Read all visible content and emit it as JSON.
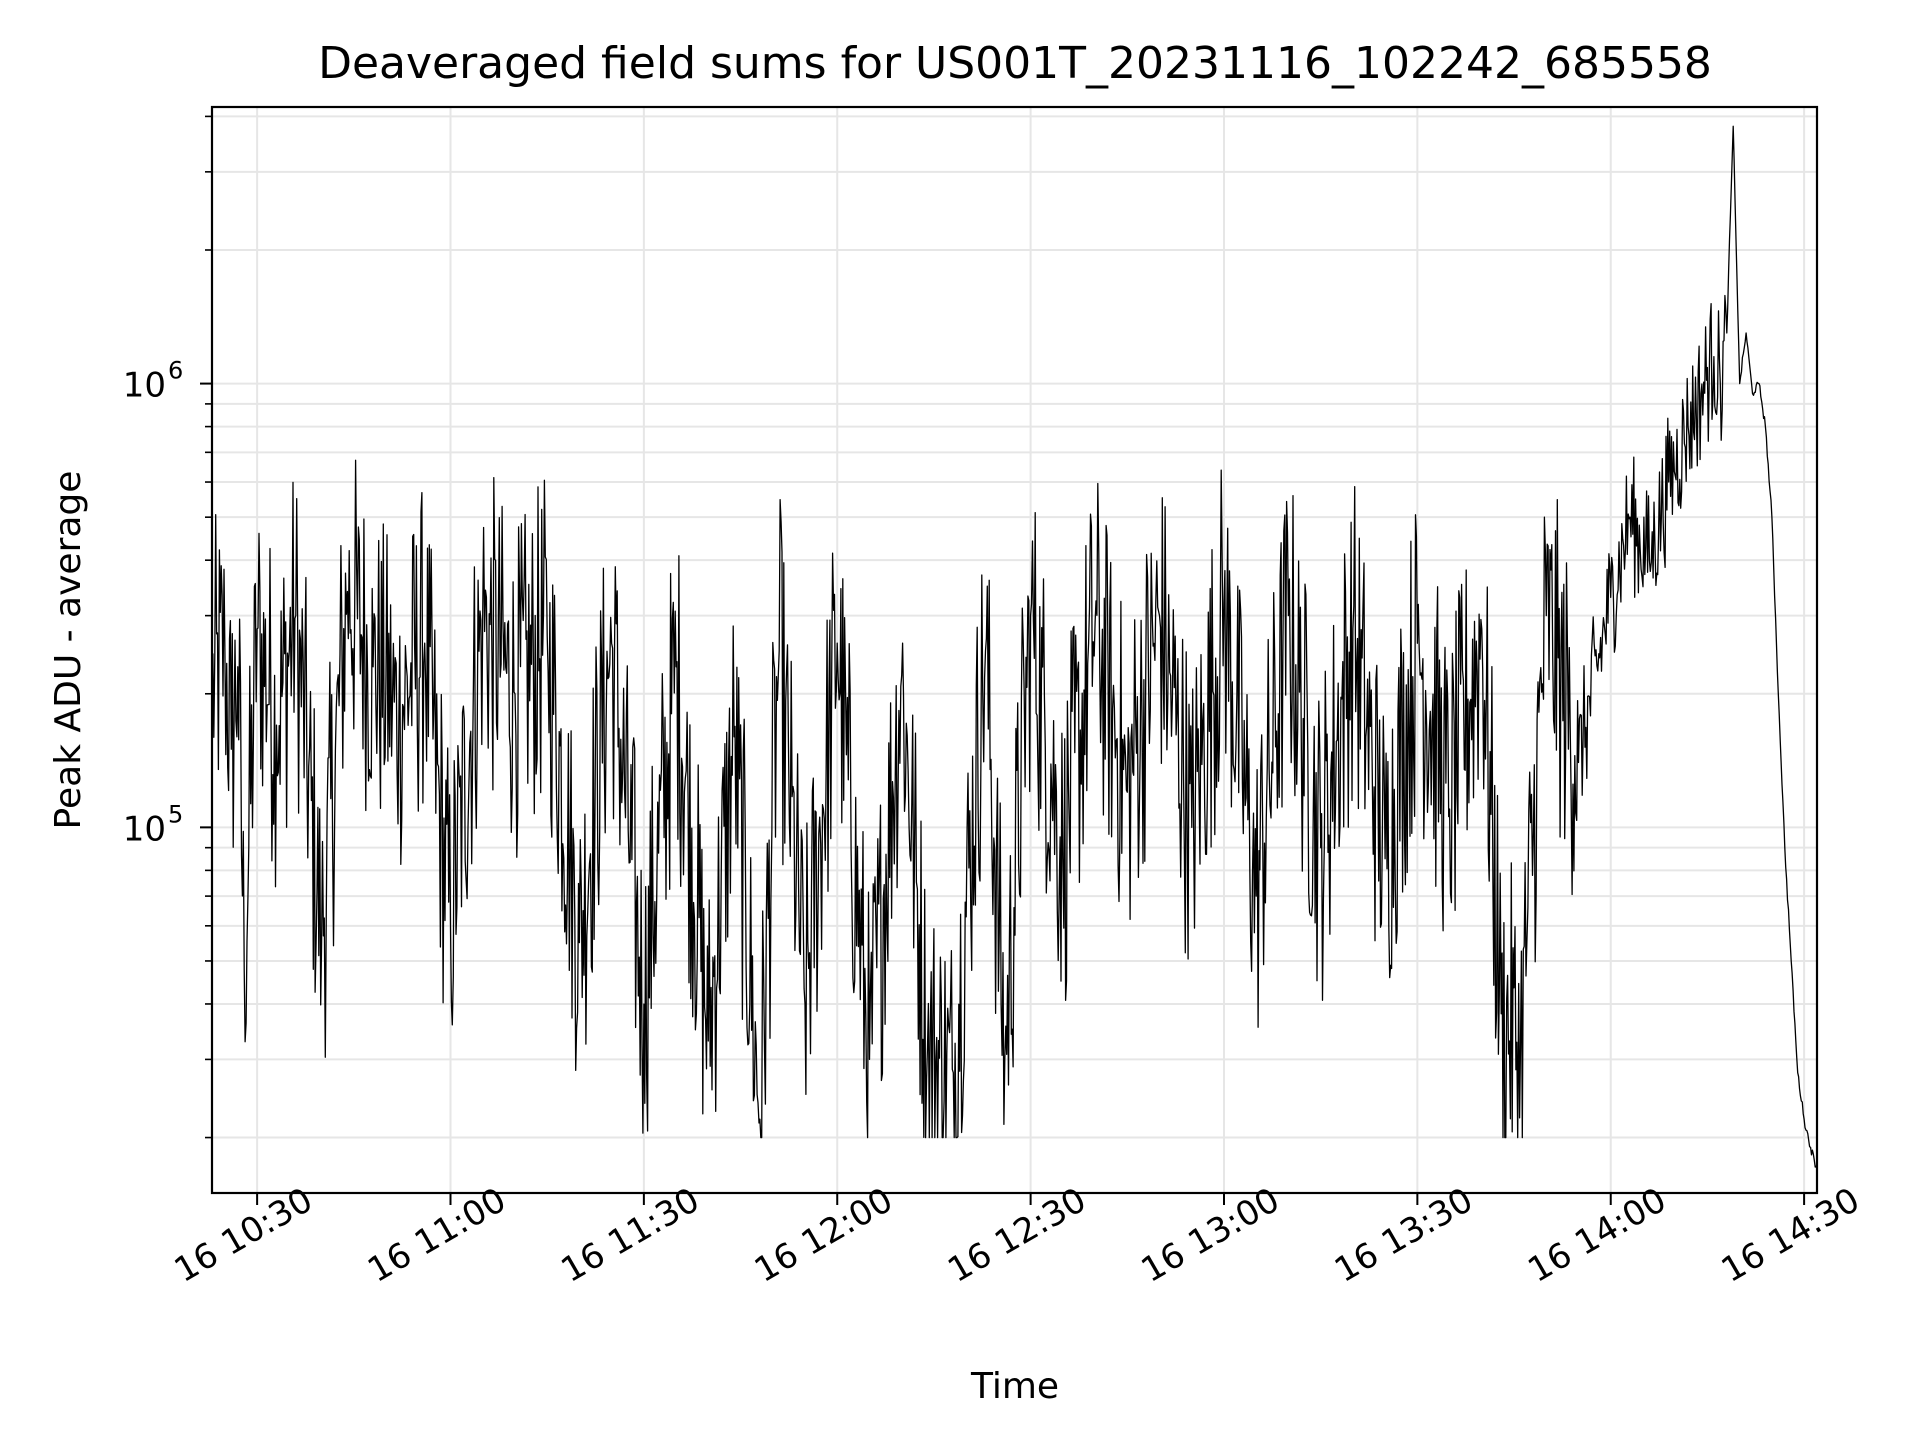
{
  "chart_data": {
    "type": "line",
    "title": "Deaveraged field sums for US001T_20231116_102242_685558",
    "xlabel": "Time",
    "ylabel": "Peak ADU - average",
    "x_ticks": [
      "16 10:30",
      "16 11:00",
      "16 11:30",
      "16 12:00",
      "16 12:30",
      "16 13:00",
      "16 13:30",
      "16 14:00",
      "16 14:30"
    ],
    "y_ticks": [
      {
        "value": 100000,
        "base": "10",
        "exp": "5"
      },
      {
        "value": 1000000,
        "base": "10",
        "exp": "6"
      }
    ],
    "xlim": [
      "2023-11-16 10:23:00",
      "2023-11-16 14:32:00"
    ],
    "ylim": [
      15000,
      4200000
    ],
    "yscale": "log",
    "grid": true,
    "grid_minor_y": true,
    "line_color": "#000000",
    "series": [
      {
        "values_note_free": true,
        "x": [
          "2023-11-16 10:23:00",
          "2023-11-16 10:25:00",
          "2023-11-16 10:26:00",
          "2023-11-16 10:27:00",
          "2023-11-16 10:28:00",
          "2023-11-16 10:30:00",
          "2023-11-16 10:33:00",
          "2023-11-16 10:36:00",
          "2023-11-16 10:40:00",
          "2023-11-16 10:44:00",
          "2023-11-16 10:48:00",
          "2023-11-16 10:52:00",
          "2023-11-16 10:56:00",
          "2023-11-16 11:00:00",
          "2023-11-16 11:05:00",
          "2023-11-16 11:10:00",
          "2023-11-16 11:15:00",
          "2023-11-16 11:20:00",
          "2023-11-16 11:25:00",
          "2023-11-16 11:30:00",
          "2023-11-16 11:35:00",
          "2023-11-16 11:40:00",
          "2023-11-16 11:44:00",
          "2023-11-16 11:48:00",
          "2023-11-16 11:51:00",
          "2023-11-16 11:55:00",
          "2023-11-16 12:00:00",
          "2023-11-16 12:05:00",
          "2023-11-16 12:10:00",
          "2023-11-16 12:14:00",
          "2023-11-16 12:18:00",
          "2023-11-16 12:23:00",
          "2023-11-16 12:26:00",
          "2023-11-16 12:30:00",
          "2023-11-16 12:35:00",
          "2023-11-16 12:40:00",
          "2023-11-16 12:45:00",
          "2023-11-16 12:50:00",
          "2023-11-16 12:55:00",
          "2023-11-16 13:00:00",
          "2023-11-16 13:05:00",
          "2023-11-16 13:10:00",
          "2023-11-16 13:15:00",
          "2023-11-16 13:20:00",
          "2023-11-16 13:25:00",
          "2023-11-16 13:30:00",
          "2023-11-16 13:35:00",
          "2023-11-16 13:40:00",
          "2023-11-16 13:43:00",
          "2023-11-16 13:46:00",
          "2023-11-16 13:50:00",
          "2023-11-16 13:55:00",
          "2023-11-16 14:00:00",
          "2023-11-16 14:03:00",
          "2023-11-16 14:06:00",
          "2023-11-16 14:09:00",
          "2023-11-16 14:12:00",
          "2023-11-16 14:14:00",
          "2023-11-16 14:16:00",
          "2023-11-16 14:17:00",
          "2023-11-16 14:18:00",
          "2023-11-16 14:19:00",
          "2023-11-16 14:20:00",
          "2023-11-16 14:21:00",
          "2023-11-16 14:22:00",
          "2023-11-16 14:23:00",
          "2023-11-16 14:24:00",
          "2023-11-16 14:25:00",
          "2023-11-16 14:26:00",
          "2023-11-16 14:27:00",
          "2023-11-16 14:28:00",
          "2023-11-16 14:29:00",
          "2023-11-16 14:30:00",
          "2023-11-16 14:31:00",
          "2023-11-16 14:32:00"
        ],
        "values": [
          200000,
          250000,
          150000,
          230000,
          48000,
          280000,
          170000,
          300000,
          55000,
          340000,
          230000,
          180000,
          260000,
          60000,
          300000,
          200000,
          270000,
          55000,
          260000,
          40000,
          230000,
          33000,
          160000,
          22000,
          250000,
          40000,
          260000,
          30000,
          220000,
          32000,
          28000,
          250000,
          30000,
          300000,
          85000,
          290000,
          120000,
          300000,
          100000,
          320000,
          70000,
          300000,
          90000,
          280000,
          85000,
          260000,
          110000,
          280000,
          38000,
          32000,
          300000,
          140000,
          330000,
          500000,
          400000,
          600000,
          800000,
          950000,
          1150000,
          1000000,
          1300000,
          3800000,
          1000000,
          1300000,
          950000,
          1000000,
          800000,
          500000,
          200000,
          90000,
          50000,
          28000,
          22000,
          19000,
          17000
        ]
      }
    ]
  }
}
